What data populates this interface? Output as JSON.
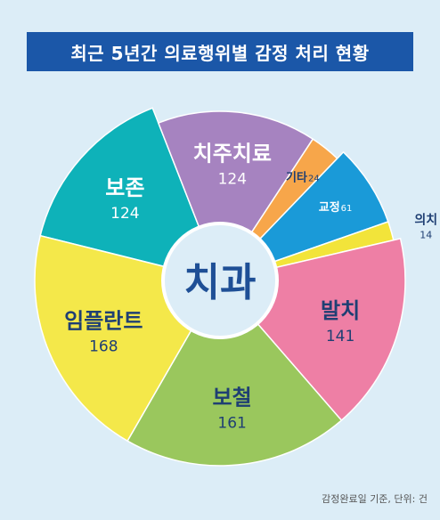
{
  "title": "최근 5년간 의료행위별 감정 처리 현황",
  "center_label": "치과",
  "footnote": "감정완료일 기준, 단위: 건",
  "colors": {
    "background": "#dcedf7",
    "title_bar": "#1b57a8",
    "center_text": "#1e4f96",
    "label_dark": "#1f3f73",
    "label_light": "#ffffff"
  },
  "chart_data": {
    "type": "pie",
    "title": "최근 5년간 의료행위별 감정 처리 현황",
    "unit": "건",
    "slices": [
      {
        "name": "보존",
        "value": 124,
        "color": "#0eb2b9"
      },
      {
        "name": "치주치료",
        "value": 124,
        "color": "#a683c0"
      },
      {
        "name": "기타",
        "value": 24,
        "color": "#f7a64a"
      },
      {
        "name": "교정",
        "value": 61,
        "color": "#1a9ad8"
      },
      {
        "name": "의치",
        "value": 14,
        "color": "#f2e43a"
      },
      {
        "name": "발치",
        "value": 141,
        "color": "#ee7fa5"
      },
      {
        "name": "보철",
        "value": 161,
        "color": "#9ac75d"
      },
      {
        "name": "임플란트",
        "value": 168,
        "color": "#f4e84a"
      }
    ]
  }
}
